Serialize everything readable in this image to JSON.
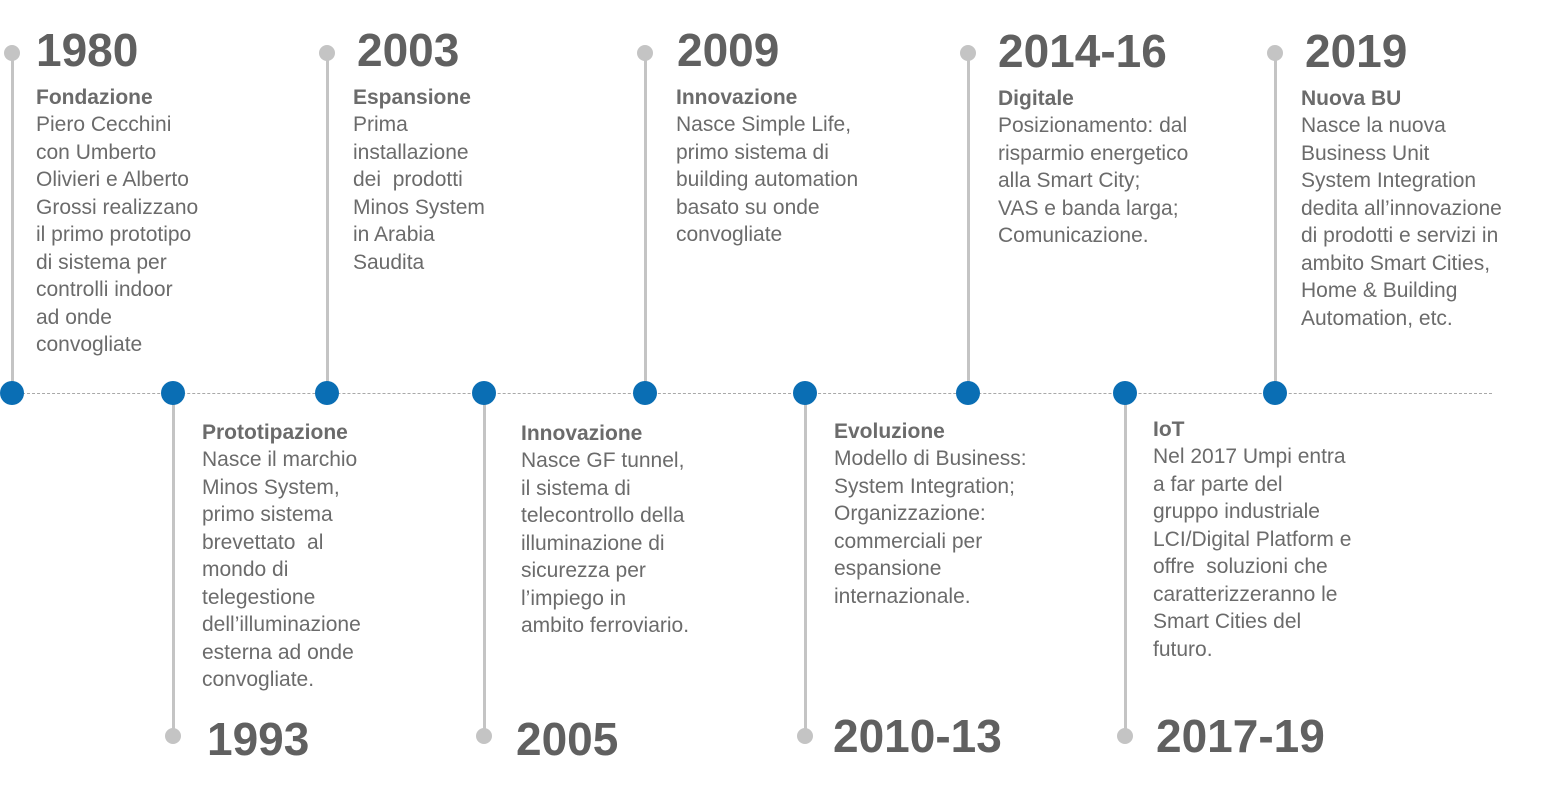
{
  "events": [
    {
      "year": "1980",
      "heading": "Fondazione",
      "lines": [
        "Piero Cecchini",
        "con Umberto",
        "Olivieri e Alberto",
        "Grossi realizzano",
        "il primo prototipo",
        "di sistema per",
        "controlli indoor",
        "ad onde",
        "convogliate"
      ]
    },
    {
      "year": "1993",
      "heading": "Prototipazione",
      "lines": [
        "Nasce il marchio",
        "Minos System,",
        "primo sistema",
        "brevettato  al",
        "mondo di",
        "telegestione",
        "dell’illuminazione",
        "esterna ad onde",
        "convogliate."
      ]
    },
    {
      "year": "2003",
      "heading": "Espansione",
      "lines": [
        "Prima",
        "installazione",
        "dei  prodotti",
        "Minos System",
        "in Arabia",
        "Saudita"
      ]
    },
    {
      "year": "2005",
      "heading": "Innovazione",
      "lines": [
        "Nasce GF tunnel,",
        "il sistema di",
        "telecontrollo della",
        "illuminazione di",
        "sicurezza per",
        "l’impiego in",
        "ambito ferroviario."
      ]
    },
    {
      "year": "2009",
      "heading": "Innovazione",
      "lines": [
        "Nasce Simple Life,",
        "primo sistema di",
        "building automation",
        "basato su onde",
        "convogliate"
      ]
    },
    {
      "year": "2010-13",
      "heading": "Evoluzione",
      "lines": [
        "Modello di Business:",
        "System Integration;",
        "Organizzazione:",
        "commerciali per",
        "espansione",
        "internazionale."
      ]
    },
    {
      "year": "2014-16",
      "heading": "Digitale",
      "lines": [
        "Posizionamento: dal",
        "risparmio energetico",
        "alla Smart City;",
        "VAS e banda larga;",
        "Comunicazione."
      ]
    },
    {
      "year": "2017-19",
      "heading": "IoT",
      "lines": [
        "Nel 2017 Umpi entra",
        "a far parte del",
        "gruppo industriale",
        "LCI/Digital Platform e",
        "offre  soluzioni che",
        "caratterizzeranno le",
        "Smart Cities del",
        "futuro."
      ]
    },
    {
      "year": "2019",
      "heading": "Nuova BU",
      "lines": [
        "Nasce la nuova",
        "Business Unit",
        "System Integration",
        "dedita all’innovazione",
        "di prodotti e servizi in",
        "ambito Smart Cities,",
        "Home & Building",
        "Automation, etc."
      ]
    }
  ],
  "colors": {
    "accent": "#0a6eb4",
    "stem": "#c4c4c4",
    "text": "#6b6b6b"
  }
}
